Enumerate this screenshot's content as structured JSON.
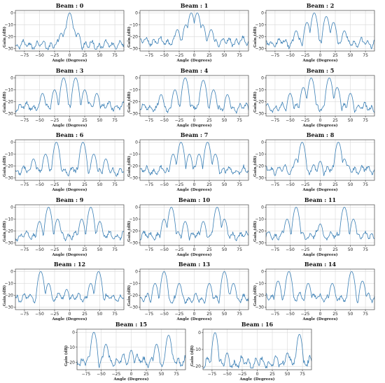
{
  "figure": {
    "xlabel": "Angle (Degrees)",
    "ylabel": "Gain (dB)",
    "line_color": "#3a7fb5",
    "grid_color": "#d9d9d9"
  },
  "chart_data": [
    {
      "type": "line",
      "title": "Beam : 0",
      "xlabel": "Angle (Degrees)",
      "ylabel": "Gain (dB)",
      "xlim": [
        -90,
        90
      ],
      "ylim": [
        -32,
        2
      ],
      "xticks": [
        -75,
        -50,
        -25,
        0,
        25,
        50,
        75
      ],
      "yticks": [
        0,
        -10,
        -20,
        -30
      ],
      "grid": true,
      "peaks": [
        [
          0,
          0
        ],
        [
          -6,
          -13
        ],
        [
          6,
          -13
        ],
        [
          -14,
          -17
        ],
        [
          14,
          -17
        ]
      ],
      "floor": -27,
      "x": [],
      "y": []
    },
    {
      "type": "line",
      "title": "Beam : 1",
      "xlabel": "Angle (Degrees)",
      "ylabel": "Gain (dB)",
      "xlim": [
        -90,
        90
      ],
      "ylim": [
        -32,
        2
      ],
      "xticks": [
        -75,
        -50,
        -25,
        0,
        25,
        50,
        75
      ],
      "yticks": [
        0,
        -10,
        -20,
        -30
      ],
      "grid": true,
      "peaks": [
        [
          -5,
          0
        ],
        [
          5,
          0
        ],
        [
          -14,
          -10
        ],
        [
          14,
          -10
        ],
        [
          -28,
          -14
        ],
        [
          28,
          -14
        ]
      ],
      "floor": -24,
      "x": [],
      "y": []
    },
    {
      "type": "line",
      "title": "Beam : 2",
      "xlabel": "Angle (Degrees)",
      "ylabel": "Gain (dB)",
      "xlim": [
        -90,
        90
      ],
      "ylim": [
        -32,
        2
      ],
      "xticks": [
        -75,
        -50,
        -25,
        0,
        25,
        50,
        75
      ],
      "yticks": [
        0,
        -10,
        -20,
        -30
      ],
      "grid": true,
      "peaks": [
        [
          -10,
          0
        ],
        [
          10,
          -3
        ],
        [
          -22,
          -8
        ],
        [
          22,
          -8
        ],
        [
          -40,
          -15
        ],
        [
          40,
          -15
        ]
      ],
      "floor": -25,
      "x": [],
      "y": []
    },
    {
      "type": "line",
      "title": "Beam : 3",
      "xlabel": "Angle (Degrees)",
      "ylabel": "Gain (dB)",
      "xlim": [
        -90,
        90
      ],
      "ylim": [
        -32,
        2
      ],
      "xticks": [
        -75,
        -50,
        -25,
        0,
        25,
        50,
        75
      ],
      "yticks": [
        0,
        -10,
        -20,
        -30
      ],
      "grid": true,
      "peaks": [
        [
          -10,
          0
        ],
        [
          10,
          0
        ],
        [
          -25,
          -10
        ],
        [
          25,
          -10
        ],
        [
          -45,
          -13
        ],
        [
          45,
          -13
        ]
      ],
      "floor": -24,
      "x": [],
      "y": []
    },
    {
      "type": "line",
      "title": "Beam : 4",
      "xlabel": "Angle (Degrees)",
      "ylabel": "Gain (dB)",
      "xlim": [
        -90,
        90
      ],
      "ylim": [
        -32,
        2
      ],
      "xticks": [
        -75,
        -50,
        -25,
        0,
        25,
        50,
        75
      ],
      "yticks": [
        0,
        -10,
        -20,
        -30
      ],
      "grid": true,
      "peaks": [
        [
          -15,
          0
        ],
        [
          15,
          -2
        ],
        [
          -32,
          -10
        ],
        [
          32,
          -10
        ],
        [
          -55,
          -14
        ],
        [
          55,
          -14
        ]
      ],
      "floor": -25,
      "x": [],
      "y": []
    },
    {
      "type": "line",
      "title": "Beam : 5",
      "xlabel": "Angle (Degrees)",
      "ylabel": "Gain (dB)",
      "xlim": [
        -90,
        90
      ],
      "ylim": [
        -32,
        2
      ],
      "xticks": [
        -75,
        -50,
        -25,
        0,
        25,
        50,
        75
      ],
      "yticks": [
        0,
        -10,
        -20,
        -30
      ],
      "grid": true,
      "peaks": [
        [
          -15,
          0
        ],
        [
          15,
          0
        ],
        [
          -28,
          -8
        ],
        [
          28,
          -8
        ],
        [
          -50,
          -13
        ],
        [
          50,
          -13
        ]
      ],
      "floor": -25,
      "x": [],
      "y": []
    },
    {
      "type": "line",
      "title": "Beam : 6",
      "xlabel": "Angle (Degrees)",
      "ylabel": "Gain (dB)",
      "xlim": [
        -90,
        90
      ],
      "ylim": [
        -32,
        2
      ],
      "xticks": [
        -75,
        -50,
        -25,
        0,
        25,
        50,
        75
      ],
      "yticks": [
        0,
        -10,
        -20,
        -30
      ],
      "grid": true,
      "peaks": [
        [
          -22,
          0
        ],
        [
          22,
          0
        ],
        [
          -40,
          -10
        ],
        [
          40,
          -10
        ],
        [
          -60,
          -14
        ],
        [
          60,
          -14
        ]
      ],
      "floor": -24,
      "x": [],
      "y": []
    },
    {
      "type": "line",
      "title": "Beam : 7",
      "xlabel": "Angle (Degrees)",
      "ylabel": "Gain (dB)",
      "xlim": [
        -90,
        90
      ],
      "ylim": [
        -32,
        2
      ],
      "xticks": [
        -75,
        -50,
        -25,
        0,
        25,
        50,
        75
      ],
      "yticks": [
        0,
        -10,
        -20,
        -30
      ],
      "grid": true,
      "peaks": [
        [
          -22,
          0
        ],
        [
          22,
          0
        ],
        [
          -35,
          -10
        ],
        [
          35,
          -10
        ],
        [
          -8,
          -10
        ],
        [
          8,
          -10
        ]
      ],
      "floor": -24,
      "x": [],
      "y": []
    },
    {
      "type": "line",
      "title": "Beam : 8",
      "xlabel": "Angle (Degrees)",
      "ylabel": "Gain (dB)",
      "xlim": [
        -90,
        90
      ],
      "ylim": [
        -32,
        2
      ],
      "xticks": [
        -75,
        -50,
        -25,
        0,
        25,
        50,
        75
      ],
      "yticks": [
        0,
        -10,
        -20,
        -30
      ],
      "grid": true,
      "peaks": [
        [
          -30,
          0
        ],
        [
          30,
          0
        ],
        [
          -40,
          -14
        ],
        [
          40,
          -14
        ],
        [
          0,
          -16
        ]
      ],
      "floor": -23,
      "x": [],
      "y": []
    },
    {
      "type": "line",
      "title": "Beam : 9",
      "xlabel": "Angle (Degrees)",
      "ylabel": "Gain (dB)",
      "xlim": [
        -90,
        90
      ],
      "ylim": [
        -32,
        2
      ],
      "xticks": [
        -75,
        -50,
        -25,
        0,
        25,
        50,
        75
      ],
      "yticks": [
        0,
        -10,
        -20,
        -30
      ],
      "grid": true,
      "peaks": [
        [
          -35,
          0
        ],
        [
          35,
          0
        ],
        [
          -20,
          -10
        ],
        [
          20,
          -10
        ],
        [
          -50,
          -12
        ],
        [
          50,
          -12
        ]
      ],
      "floor": -24,
      "x": [],
      "y": []
    },
    {
      "type": "line",
      "title": "Beam : 10",
      "xlabel": "Angle (Degrees)",
      "ylabel": "Gain (dB)",
      "xlim": [
        -90,
        90
      ],
      "ylim": [
        -32,
        2
      ],
      "xticks": [
        -75,
        -50,
        -25,
        0,
        25,
        50,
        75
      ],
      "yticks": [
        0,
        -10,
        -20,
        -30
      ],
      "grid": true,
      "peaks": [
        [
          -38,
          0
        ],
        [
          38,
          0
        ],
        [
          -50,
          -10
        ],
        [
          50,
          -10
        ],
        [
          -15,
          -12
        ],
        [
          15,
          -12
        ]
      ],
      "floor": -24,
      "x": [],
      "y": []
    },
    {
      "type": "line",
      "title": "Beam : 11",
      "xlabel": "Angle (Degrees)",
      "ylabel": "Gain (dB)",
      "xlim": [
        -90,
        90
      ],
      "ylim": [
        -32,
        2
      ],
      "xticks": [
        -75,
        -50,
        -25,
        0,
        25,
        50,
        75
      ],
      "yticks": [
        0,
        -10,
        -20,
        -30
      ],
      "grid": true,
      "peaks": [
        [
          -40,
          0
        ],
        [
          40,
          0
        ],
        [
          -55,
          -10
        ],
        [
          55,
          -10
        ],
        [
          0,
          -14
        ]
      ],
      "floor": -24,
      "x": [],
      "y": []
    },
    {
      "type": "line",
      "title": "Beam : 12",
      "xlabel": "Angle (Degrees)",
      "ylabel": "Gain (dB)",
      "xlim": [
        -90,
        90
      ],
      "ylim": [
        -32,
        2
      ],
      "xticks": [
        -75,
        -50,
        -25,
        0,
        25,
        50,
        75
      ],
      "yticks": [
        0,
        -10,
        -20,
        -30
      ],
      "grid": true,
      "peaks": [
        [
          -48,
          0
        ],
        [
          48,
          0
        ],
        [
          -35,
          -10
        ],
        [
          35,
          -10
        ],
        [
          -5,
          -15
        ]
      ],
      "floor": -22,
      "x": [],
      "y": []
    },
    {
      "type": "line",
      "title": "Beam : 13",
      "xlabel": "Angle (Degrees)",
      "ylabel": "Gain (dB)",
      "xlim": [
        -90,
        90
      ],
      "ylim": [
        -32,
        2
      ],
      "xticks": [
        -75,
        -50,
        -25,
        0,
        25,
        50,
        75
      ],
      "yticks": [
        0,
        -10,
        -20,
        -30
      ],
      "grid": true,
      "peaks": [
        [
          -50,
          0
        ],
        [
          50,
          0
        ],
        [
          -65,
          -10
        ],
        [
          65,
          -10
        ],
        [
          -25,
          -10
        ],
        [
          25,
          -10
        ]
      ],
      "floor": -23,
      "x": [],
      "y": []
    },
    {
      "type": "line",
      "title": "Beam : 14",
      "xlabel": "Angle (Degrees)",
      "ylabel": "Gain (dB)",
      "xlim": [
        -90,
        90
      ],
      "ylim": [
        -32,
        2
      ],
      "xticks": [
        -75,
        -50,
        -25,
        0,
        25,
        50,
        75
      ],
      "yticks": [
        0,
        -10,
        -20,
        -30
      ],
      "grid": true,
      "peaks": [
        [
          -52,
          0
        ],
        [
          52,
          0
        ],
        [
          -70,
          -8
        ],
        [
          70,
          -8
        ],
        [
          -20,
          -10
        ],
        [
          20,
          -10
        ]
      ],
      "floor": -22,
      "x": [],
      "y": []
    },
    {
      "type": "line",
      "title": "Beam : 15",
      "xlabel": "Angle (Degrees)",
      "ylabel": "Gain (dB)",
      "xlim": [
        -90,
        90
      ],
      "ylim": [
        -25,
        2
      ],
      "xticks": [
        -75,
        -50,
        -25,
        0,
        25,
        50,
        75
      ],
      "yticks": [
        0,
        -10,
        -20
      ],
      "grid": true,
      "peaks": [
        [
          -62,
          0
        ],
        [
          62,
          -2
        ],
        [
          -42,
          -8
        ],
        [
          42,
          -8
        ],
        [
          0,
          -12
        ]
      ],
      "floor": -19,
      "x": [],
      "y": []
    },
    {
      "type": "line",
      "title": "Beam : 16",
      "xlabel": "Angle (Degrees)",
      "ylabel": "Gain (dB)",
      "xlim": [
        -90,
        90
      ],
      "ylim": [
        -22,
        2
      ],
      "xticks": [
        -75,
        -50,
        -25,
        0,
        25,
        50,
        75
      ],
      "yticks": [
        0,
        -10,
        -20
      ],
      "grid": true,
      "peaks": [
        [
          -70,
          0
        ],
        [
          70,
          -1
        ],
        [
          -50,
          -12
        ],
        [
          50,
          -12
        ]
      ],
      "floor": -18,
      "x": [],
      "y": []
    }
  ]
}
